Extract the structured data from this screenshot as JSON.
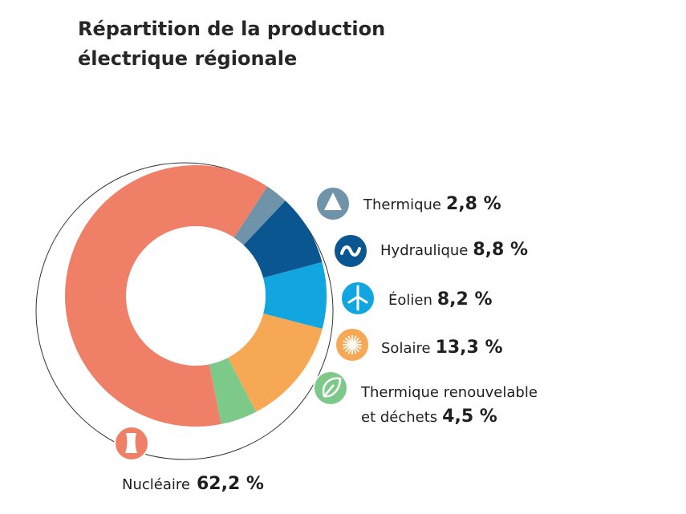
{
  "title_line1": "Répartition de la production",
  "title_line2": "électrique régionale",
  "chart_data": {
    "type": "pie",
    "title": "Répartition de la production électrique régionale",
    "unit": "%",
    "slices": [
      {
        "label": "Nucléaire",
        "value": 62.2,
        "display": "62,2 %",
        "color": "#f07f68",
        "icon": "nuclear-plant-icon"
      },
      {
        "label": "Thermique",
        "value": 2.8,
        "display": "2,8 %",
        "color": "#6f93a8",
        "icon": "triangle-icon"
      },
      {
        "label": "Hydraulique",
        "value": 8.8,
        "display": "8,8 %",
        "color": "#0a5691",
        "icon": "wave-icon"
      },
      {
        "label": "Éolien",
        "value": 8.2,
        "display": "8,2 %",
        "color": "#12a6e0",
        "icon": "wind-turbine-icon"
      },
      {
        "label": "Solaire",
        "value": 13.3,
        "display": "13,3 %",
        "color": "#f7a855",
        "icon": "sun-icon"
      },
      {
        "label": "Thermique renouvelable",
        "label_line2": "et déchets",
        "value": 4.5,
        "display": "4,5 %",
        "color": "#7dc98a",
        "icon": "leaf-icon"
      }
    ]
  }
}
